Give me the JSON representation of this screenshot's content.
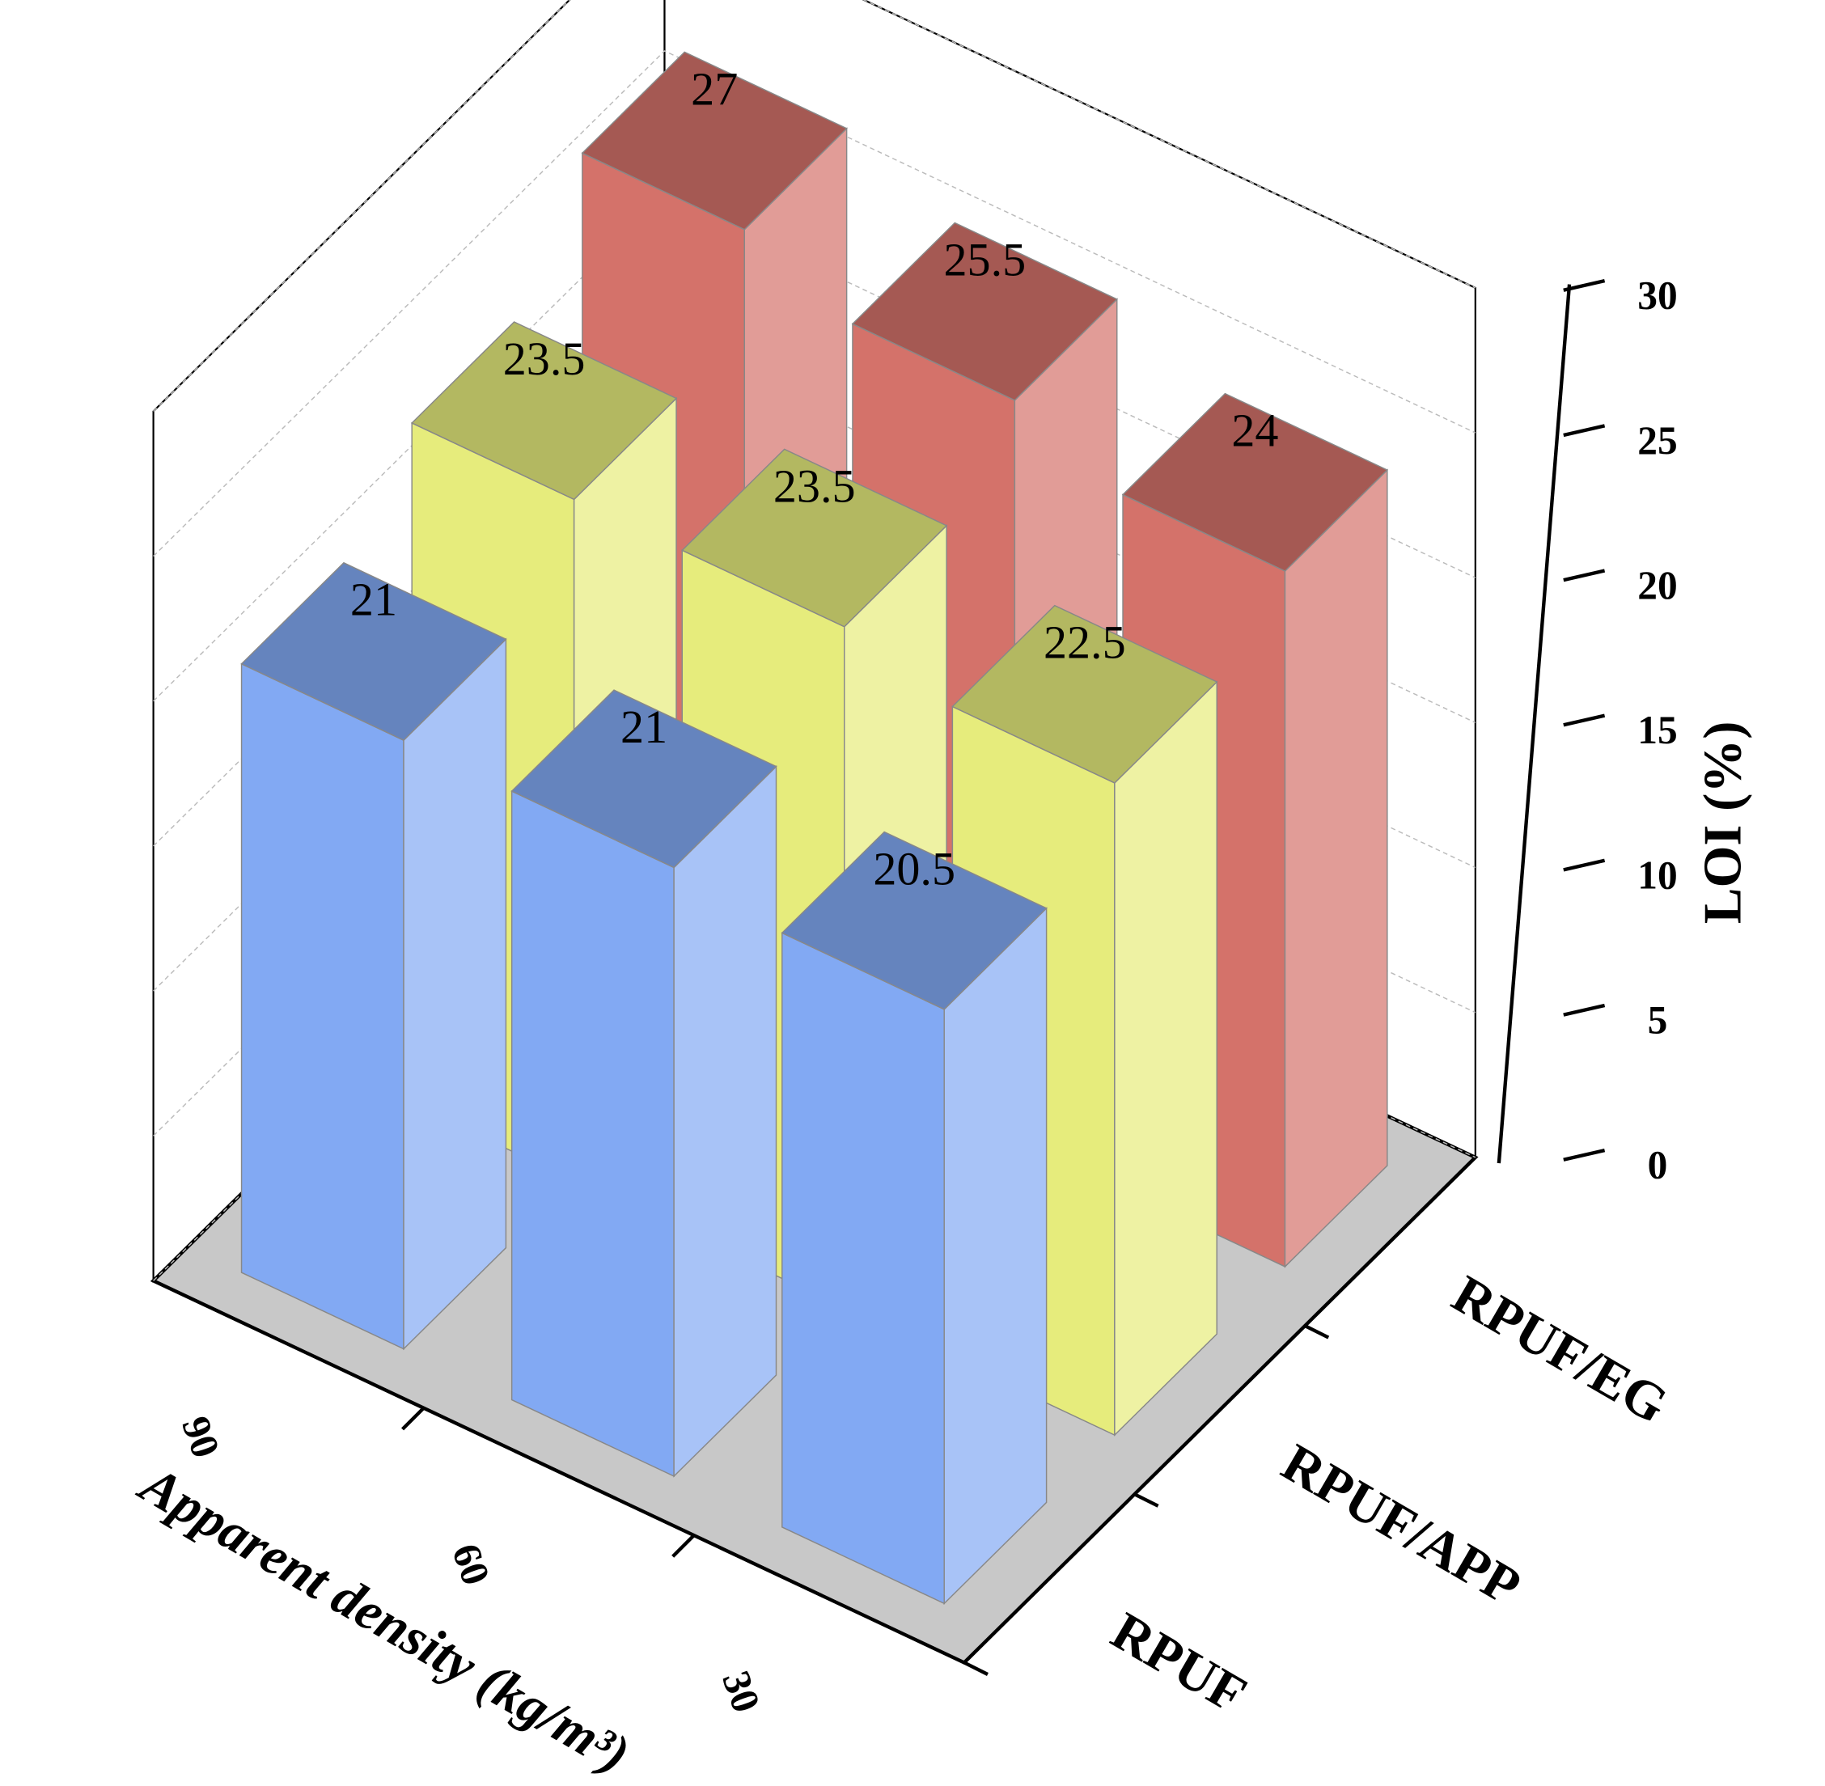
{
  "chart_data": {
    "type": "bar3d",
    "x_label": "Apparent density (kg/m³)",
    "z_label": "LOI (%)",
    "categories": [
      "90",
      "60",
      "30"
    ],
    "series": [
      {
        "name": "RPUF",
        "color": "#82a9f3",
        "values": [
          21,
          21,
          20.5
        ]
      },
      {
        "name": "RPUF/APP",
        "color": "#e6ec7c",
        "values": [
          23.5,
          23.5,
          22.5
        ]
      },
      {
        "name": "RPUF/EG",
        "color": "#d4726a",
        "values": [
          27,
          25.5,
          24
        ]
      }
    ],
    "zlim": [
      0,
      30
    ],
    "zticks": [
      0,
      5,
      10,
      15,
      20,
      25,
      30
    ],
    "grid": true
  }
}
